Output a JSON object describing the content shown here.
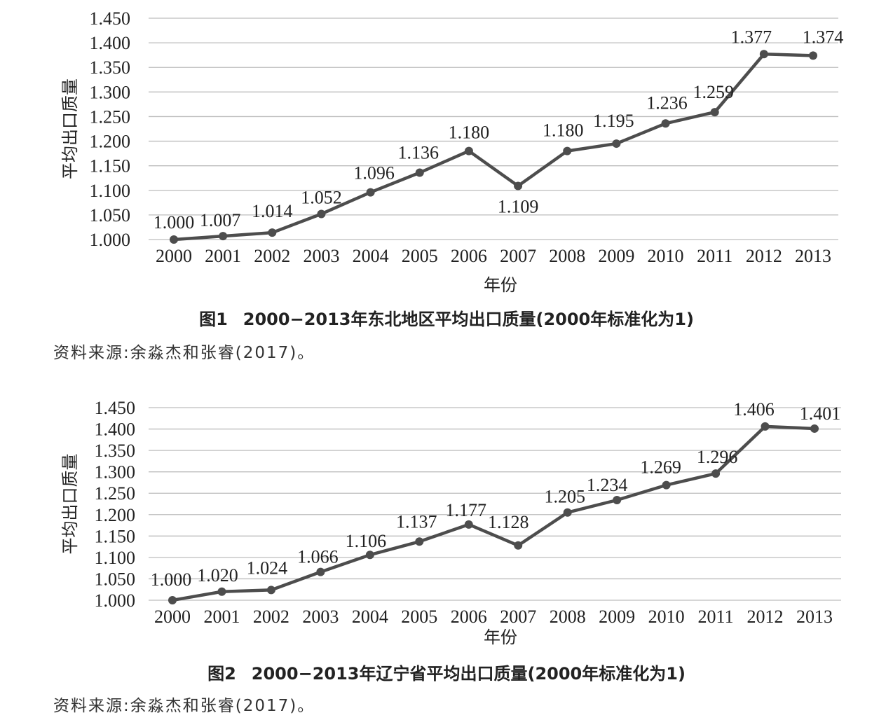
{
  "chart_data": [
    {
      "type": "line",
      "categories": [
        "2000",
        "2001",
        "2002",
        "2003",
        "2004",
        "2005",
        "2006",
        "2007",
        "2008",
        "2009",
        "2010",
        "2011",
        "2012",
        "2013"
      ],
      "series": [
        {
          "values": [
            1.0,
            1.007,
            1.014,
            1.052,
            1.096,
            1.136,
            1.18,
            1.109,
            1.18,
            1.195,
            1.236,
            1.259,
            1.377,
            1.374
          ]
        }
      ],
      "data_labels": [
        "1.000",
        "1.007",
        "1.014",
        "1.052",
        "1.096",
        "1.136",
        "1.180",
        "1.109",
        "1.180",
        "1.195",
        "1.236",
        "1.259",
        "1.377",
        "1.374"
      ],
      "xlabel": "年份",
      "ylabel": "平均出口质量",
      "ylim": [
        1.0,
        1.45
      ],
      "yticks": [
        "1.000",
        "1.050",
        "1.100",
        "1.150",
        "1.200",
        "1.250",
        "1.300",
        "1.350",
        "1.400",
        "1.450"
      ],
      "grid": true,
      "line_color": "#4d4d4d"
    },
    {
      "type": "line",
      "categories": [
        "2000",
        "2001",
        "2002",
        "2003",
        "2004",
        "2005",
        "2006",
        "2007",
        "2008",
        "2009",
        "2010",
        "2011",
        "2012",
        "2013"
      ],
      "series": [
        {
          "values": [
            1.0,
            1.02,
            1.024,
            1.066,
            1.106,
            1.137,
            1.177,
            1.128,
            1.205,
            1.234,
            1.269,
            1.296,
            1.406,
            1.401
          ]
        }
      ],
      "data_labels": [
        "1.000",
        "1.020",
        "1.024",
        "1.066",
        "1.106",
        "1.137",
        "1.177",
        "1.128",
        "1.205",
        "1.234",
        "1.269",
        "1.296",
        "1.406",
        "1.401"
      ],
      "xlabel": "年份",
      "ylabel": "平均出口质量",
      "ylim": [
        1.0,
        1.45
      ],
      "yticks": [
        "1.000",
        "1.050",
        "1.100",
        "1.150",
        "1.200",
        "1.250",
        "1.300",
        "1.350",
        "1.400",
        "1.450"
      ],
      "grid": true,
      "line_color": "#4d4d4d"
    }
  ],
  "figure1": {
    "number": "图1",
    "title": "2000−2013年东北地区平均出口质量(2000年标准化为1)",
    "source": "资料来源:余淼杰和张睿(2017)。"
  },
  "figure2": {
    "number": "图2",
    "title": "2000−2013年辽宁省平均出口质量(2000年标准化为1)",
    "source": "资料来源:余淼杰和张睿(2017)。"
  }
}
